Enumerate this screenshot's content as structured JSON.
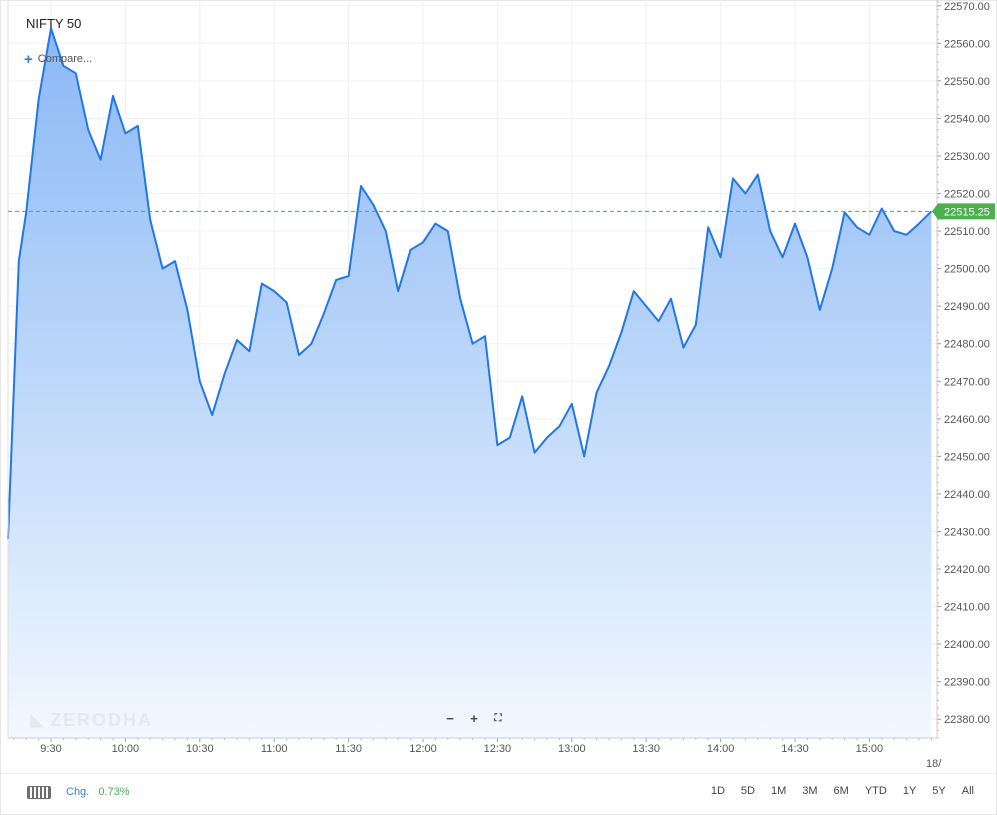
{
  "legend": {
    "title": "NIFTY 50",
    "compare_label": "Compare..."
  },
  "watermark": {
    "text": "ZERODHA"
  },
  "zoom": {
    "zoom_out": "−",
    "zoom_in": "+",
    "fit": "⛶"
  },
  "footer": {
    "keyboard_icon": "keyboard-icon",
    "chg_label": "Chg.",
    "chg_value": "0.73%",
    "ranges": [
      "1D",
      "5D",
      "1M",
      "3M",
      "6M",
      "YTD",
      "1Y",
      "5Y",
      "All"
    ]
  },
  "colors": {
    "line": "#2277e6",
    "area_top": "#8ab8f5",
    "area_bottom": "#f2f8ff",
    "last_price": "#4caf50",
    "grid": "#eef1f5"
  },
  "chart_data": {
    "type": "area",
    "series_name": "NIFTY 50",
    "x_unit": "time",
    "x_ticks": [
      "9:30",
      "10:00",
      "10:30",
      "11:00",
      "11:30",
      "12:00",
      "12:30",
      "13:00",
      "13:30",
      "14:00",
      "14:30",
      "15:00"
    ],
    "x_edge_label": "18/",
    "y_ticks": [
      22380,
      22390,
      22400,
      22410,
      22420,
      22430,
      22440,
      22450,
      22460,
      22470,
      22480,
      22490,
      22500,
      22510,
      22520,
      22530,
      22540,
      22550,
      22560,
      22570
    ],
    "y_tick_labels": [
      "22380.00",
      "22390.00",
      "22400.00",
      "22410.00",
      "22420.00",
      "22430.00",
      "22440.00",
      "22450.00",
      "22460.00",
      "22470.00",
      "22480.00",
      "22490.00",
      "22500.00",
      "22510.00",
      "22520.00",
      "22530.00",
      "22540.00",
      "22550.00",
      "22560.00",
      "22570.00"
    ],
    "ylim": [
      22375,
      22571
    ],
    "last_price": 22515.25,
    "last_price_label": "22515.25",
    "grid": true,
    "points": [
      [
        "9:15",
        22428
      ],
      [
        "9:17",
        22502
      ],
      [
        "9:20",
        22515
      ],
      [
        "9:25",
        22545
      ],
      [
        "9:30",
        22564
      ],
      [
        "9:35",
        22554
      ],
      [
        "9:40",
        22552
      ],
      [
        "9:45",
        22537
      ],
      [
        "9:50",
        22529
      ],
      [
        "9:55",
        22546
      ],
      [
        "10:00",
        22536
      ],
      [
        "10:05",
        22538
      ],
      [
        "10:10",
        22513
      ],
      [
        "10:15",
        22500
      ],
      [
        "10:20",
        22502
      ],
      [
        "10:25",
        22489
      ],
      [
        "10:30",
        22470
      ],
      [
        "10:35",
        22461
      ],
      [
        "10:40",
        22472
      ],
      [
        "10:45",
        22481
      ],
      [
        "10:50",
        22478
      ],
      [
        "10:55",
        22496
      ],
      [
        "11:00",
        22494
      ],
      [
        "11:05",
        22491
      ],
      [
        "11:10",
        22477
      ],
      [
        "11:15",
        22480
      ],
      [
        "11:20",
        22488
      ],
      [
        "11:25",
        22497
      ],
      [
        "11:30",
        22498
      ],
      [
        "11:35",
        22522
      ],
      [
        "11:40",
        22517
      ],
      [
        "11:45",
        22510
      ],
      [
        "11:50",
        22494
      ],
      [
        "11:55",
        22505
      ],
      [
        "12:00",
        22507
      ],
      [
        "12:05",
        22512
      ],
      [
        "12:10",
        22510
      ],
      [
        "12:15",
        22492
      ],
      [
        "12:20",
        22480
      ],
      [
        "12:25",
        22482
      ],
      [
        "12:30",
        22453
      ],
      [
        "12:35",
        22455
      ],
      [
        "12:40",
        22466
      ],
      [
        "12:45",
        22451
      ],
      [
        "12:50",
        22455
      ],
      [
        "12:55",
        22458
      ],
      [
        "13:00",
        22464
      ],
      [
        "13:05",
        22450
      ],
      [
        "13:10",
        22467
      ],
      [
        "13:15",
        22474
      ],
      [
        "13:20",
        22483
      ],
      [
        "13:25",
        22494
      ],
      [
        "13:30",
        22490
      ],
      [
        "13:35",
        22486
      ],
      [
        "13:40",
        22492
      ],
      [
        "13:45",
        22479
      ],
      [
        "13:50",
        22485
      ],
      [
        "13:55",
        22511
      ],
      [
        "14:00",
        22503
      ],
      [
        "14:05",
        22524
      ],
      [
        "14:10",
        22520
      ],
      [
        "14:15",
        22525
      ],
      [
        "14:20",
        22510
      ],
      [
        "14:25",
        22503
      ],
      [
        "14:30",
        22512
      ],
      [
        "14:35",
        22503
      ],
      [
        "14:40",
        22489
      ],
      [
        "14:45",
        22500
      ],
      [
        "14:50",
        22515
      ],
      [
        "14:55",
        22511
      ],
      [
        "15:00",
        22509
      ],
      [
        "15:05",
        22516
      ],
      [
        "15:10",
        22510
      ],
      [
        "15:15",
        22509
      ],
      [
        "15:20",
        22512
      ],
      [
        "15:25",
        22515.25
      ]
    ]
  }
}
